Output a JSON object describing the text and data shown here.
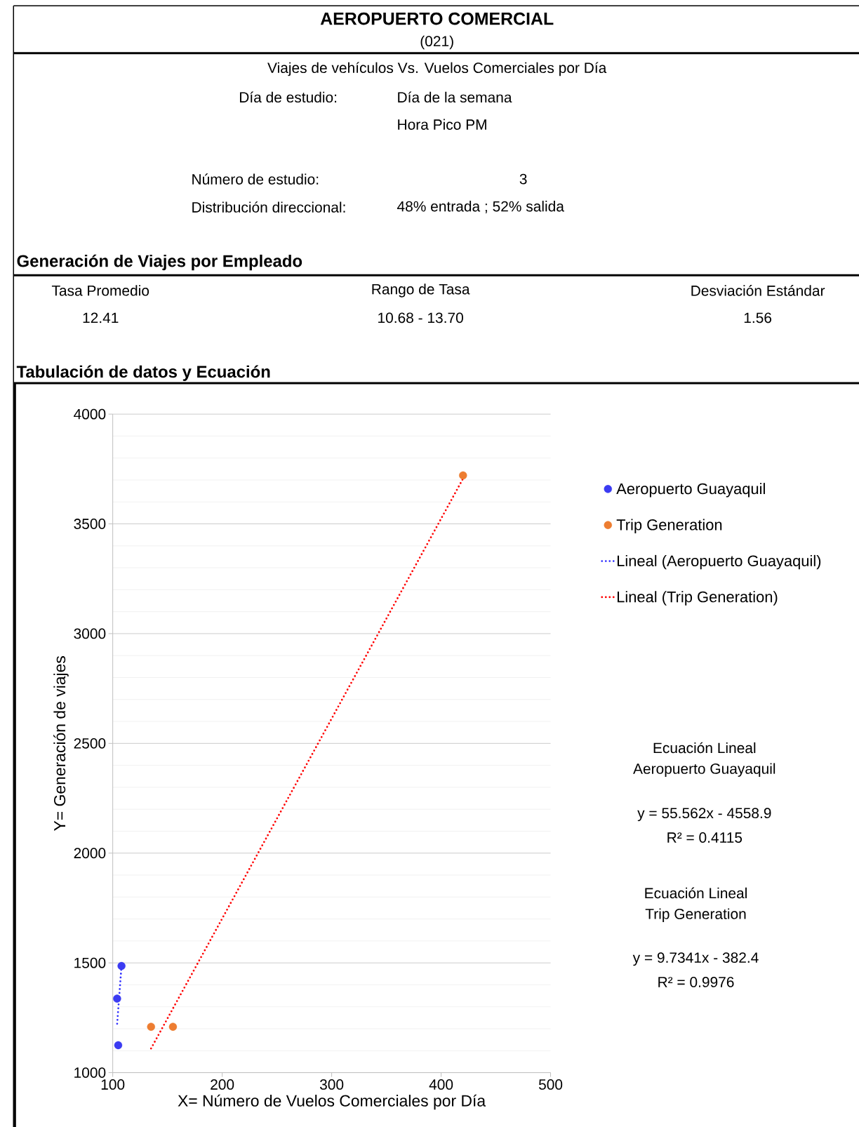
{
  "chart_data": {
    "type": "scatter",
    "title": "AEROPUERTO COMERCIAL",
    "subtitle": "(021)",
    "xlabel": "X= Número de Vuelos Comerciales por Día",
    "ylabel": "Y= Generación de viajes",
    "xlim": [
      100,
      500
    ],
    "xticks": [
      100,
      200,
      300,
      400,
      500
    ],
    "ylim": [
      1000,
      4000
    ],
    "yticks": [
      1000,
      1500,
      2000,
      2500,
      3000,
      3500,
      4000
    ],
    "grid": "y",
    "legend": "right",
    "series": [
      {
        "name": "Aeropuerto Guayaquil",
        "marker": "circle",
        "color": "#3b3bf2",
        "x": [
          108,
          104,
          105
        ],
        "values": [
          1486,
          1337,
          1125
        ]
      },
      {
        "name": "Trip Generation",
        "marker": "circle",
        "color": "#ed7d31",
        "x": [
          135,
          155,
          420
        ],
        "values": [
          1209,
          1209,
          3721
        ]
      },
      {
        "name": "Lineal (Aeropuerto Guayaquil)",
        "type": "line",
        "marker": "none",
        "line_style": "dotted",
        "color": "#3333ff",
        "x": [
          108,
          104
        ],
        "values": [
          1486,
          1221
        ]
      },
      {
        "name": "Lineal (Trip Generation)",
        "type": "line",
        "marker": "none",
        "line_style": "dotted",
        "color": "#ff0000",
        "x": [
          135,
          420
        ],
        "values": [
          1110,
          3706
        ]
      }
    ],
    "annotations": [
      "Viajes de vehículos Vs. Vuelos Comerciales por Día",
      "Día de estudio:",
      "Día de la semana",
      "Hora Pico PM",
      "Número de estudio:",
      "3",
      "Distribución direccional:",
      "48% entrada ; 52% salida",
      "Generación de Viajes por Empleado",
      "Tasa Promedio",
      "Rango de Tasa",
      "Desviación Estándar",
      "12.41",
      "10.68 - 13.70",
      "1.56",
      "Tabulación de datos y Ecuación",
      "Ecuación Lineal",
      "Aeropuerto Guayaquil",
      "y = 55.562x - 4558.9",
      "R² = 0.4115",
      "Ecuación Lineal",
      "Trip Generation",
      "y = 9.7341x - 382.4",
      "R² = 0.9976"
    ]
  }
}
